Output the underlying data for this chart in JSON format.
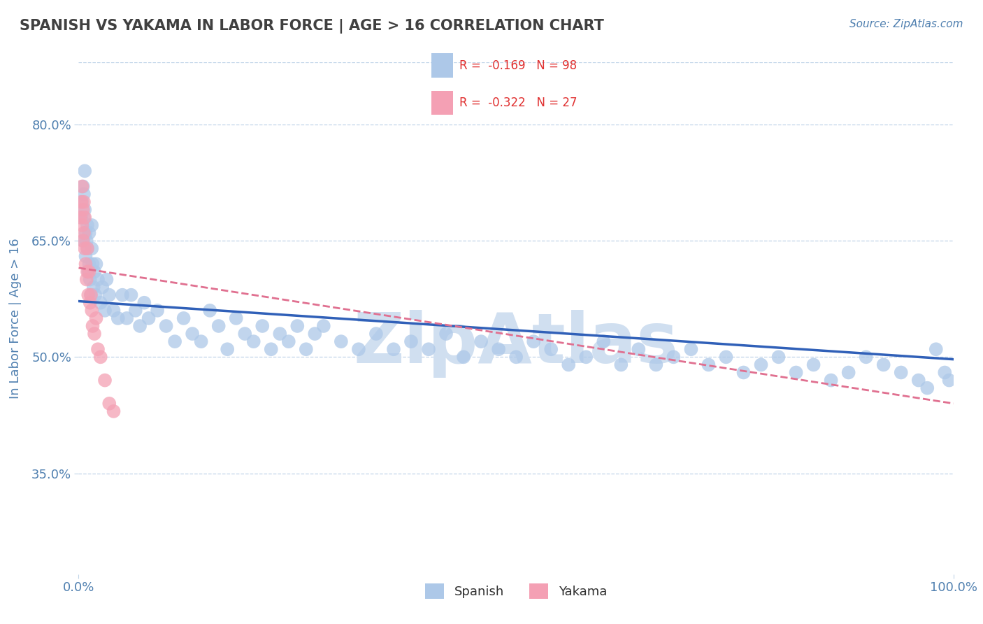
{
  "title": "SPANISH VS YAKAMA IN LABOR FORCE | AGE > 16 CORRELATION CHART",
  "source": "Source: ZipAtlas.com",
  "ylabel": "In Labor Force | Age > 16",
  "xlim": [
    0.0,
    1.0
  ],
  "ylim": [
    0.22,
    0.88
  ],
  "yticks": [
    0.35,
    0.5,
    0.65,
    0.8
  ],
  "ytick_labels": [
    "35.0%",
    "50.0%",
    "65.0%",
    "80.0%"
  ],
  "spanish_R": -0.169,
  "spanish_N": 98,
  "yakama_R": -0.322,
  "yakama_N": 27,
  "spanish_color": "#adc8e8",
  "yakama_color": "#f4a0b4",
  "spanish_line_color": "#3060b8",
  "yakama_line_color": "#e07090",
  "background_color": "#ffffff",
  "grid_color": "#c0d4e8",
  "watermark": "ZipAtlas",
  "watermark_color": "#d0dff0",
  "title_color": "#404040",
  "axis_color": "#5080b0",
  "legend_text_color": "#303030",
  "legend_val_color": "#e03030",
  "spanish_line_intercept": 0.572,
  "spanish_line_slope": -0.075,
  "yakama_line_intercept": 0.615,
  "yakama_line_slope": -0.175,
  "spanish_x": [
    0.003,
    0.004,
    0.005,
    0.005,
    0.006,
    0.006,
    0.007,
    0.007,
    0.008,
    0.008,
    0.009,
    0.01,
    0.01,
    0.011,
    0.012,
    0.012,
    0.013,
    0.014,
    0.015,
    0.015,
    0.016,
    0.017,
    0.018,
    0.019,
    0.02,
    0.022,
    0.025,
    0.027,
    0.03,
    0.032,
    0.035,
    0.04,
    0.045,
    0.05,
    0.055,
    0.06,
    0.065,
    0.07,
    0.075,
    0.08,
    0.09,
    0.1,
    0.11,
    0.12,
    0.13,
    0.14,
    0.15,
    0.16,
    0.17,
    0.18,
    0.19,
    0.2,
    0.21,
    0.22,
    0.23,
    0.24,
    0.25,
    0.26,
    0.27,
    0.28,
    0.3,
    0.32,
    0.34,
    0.36,
    0.38,
    0.4,
    0.42,
    0.44,
    0.46,
    0.48,
    0.5,
    0.52,
    0.54,
    0.56,
    0.58,
    0.6,
    0.62,
    0.64,
    0.66,
    0.68,
    0.7,
    0.72,
    0.74,
    0.76,
    0.78,
    0.8,
    0.82,
    0.84,
    0.86,
    0.88,
    0.9,
    0.92,
    0.94,
    0.96,
    0.97,
    0.98,
    0.99,
    0.995
  ],
  "spanish_y": [
    0.68,
    0.7,
    0.72,
    0.65,
    0.68,
    0.71,
    0.69,
    0.74,
    0.66,
    0.63,
    0.65,
    0.67,
    0.64,
    0.61,
    0.66,
    0.62,
    0.6,
    0.58,
    0.64,
    0.67,
    0.62,
    0.59,
    0.61,
    0.58,
    0.62,
    0.6,
    0.57,
    0.59,
    0.56,
    0.6,
    0.58,
    0.56,
    0.55,
    0.58,
    0.55,
    0.58,
    0.56,
    0.54,
    0.57,
    0.55,
    0.56,
    0.54,
    0.52,
    0.55,
    0.53,
    0.52,
    0.56,
    0.54,
    0.51,
    0.55,
    0.53,
    0.52,
    0.54,
    0.51,
    0.53,
    0.52,
    0.54,
    0.51,
    0.53,
    0.54,
    0.52,
    0.51,
    0.53,
    0.51,
    0.52,
    0.51,
    0.53,
    0.5,
    0.52,
    0.51,
    0.5,
    0.52,
    0.51,
    0.49,
    0.5,
    0.52,
    0.49,
    0.51,
    0.49,
    0.5,
    0.51,
    0.49,
    0.5,
    0.48,
    0.49,
    0.5,
    0.48,
    0.49,
    0.47,
    0.48,
    0.5,
    0.49,
    0.48,
    0.47,
    0.46,
    0.51,
    0.48,
    0.47
  ],
  "yakama_x": [
    0.002,
    0.003,
    0.004,
    0.004,
    0.005,
    0.005,
    0.006,
    0.006,
    0.007,
    0.007,
    0.008,
    0.009,
    0.01,
    0.01,
    0.011,
    0.012,
    0.013,
    0.014,
    0.015,
    0.016,
    0.018,
    0.02,
    0.022,
    0.025,
    0.03,
    0.035,
    0.04
  ],
  "yakama_y": [
    0.68,
    0.7,
    0.67,
    0.72,
    0.65,
    0.69,
    0.66,
    0.7,
    0.64,
    0.68,
    0.62,
    0.6,
    0.64,
    0.61,
    0.58,
    0.61,
    0.57,
    0.58,
    0.56,
    0.54,
    0.53,
    0.55,
    0.51,
    0.5,
    0.47,
    0.44,
    0.43
  ]
}
